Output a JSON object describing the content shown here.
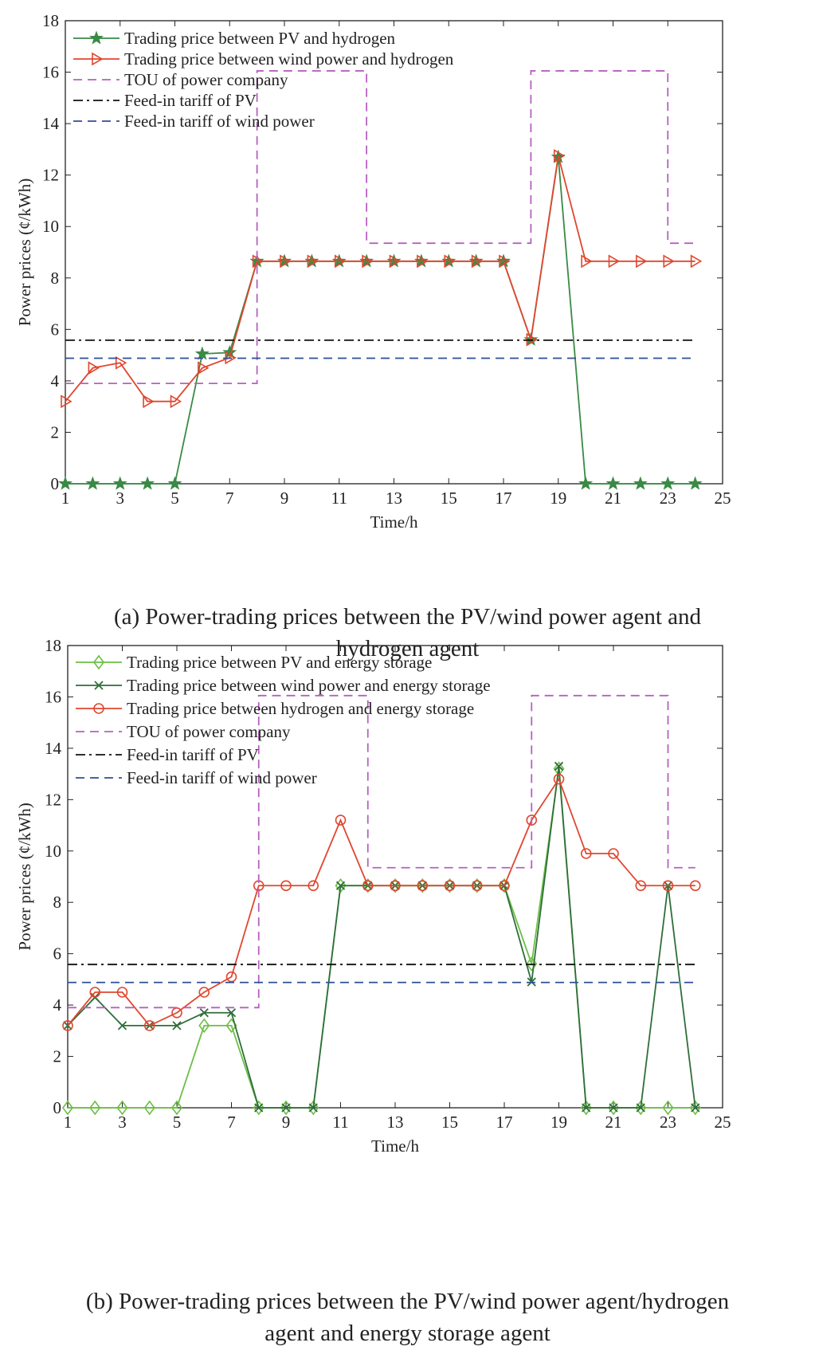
{
  "captions": {
    "a_line1": "(a) Power-trading prices between the PV/wind power agent and",
    "a_line2": "hydrogen agent",
    "b_line1": "(b) Power-trading prices between the PV/wind power agent/hydrogen",
    "b_line2": "agent and energy storage agent"
  },
  "chart_data": [
    {
      "type": "line",
      "xlabel": "Time/h",
      "ylabel": "Power prices (¢/kWh)",
      "xlim": [
        1,
        25
      ],
      "ylim": [
        0,
        18
      ],
      "xticks": [
        1,
        3,
        5,
        7,
        9,
        11,
        13,
        15,
        17,
        19,
        21,
        23,
        25
      ],
      "yticks": [
        0,
        2,
        4,
        6,
        8,
        10,
        12,
        14,
        16,
        18
      ],
      "grid": false,
      "legend_position": "top-left",
      "x": [
        1,
        2,
        3,
        4,
        5,
        6,
        7,
        8,
        9,
        10,
        11,
        12,
        13,
        14,
        15,
        16,
        17,
        18,
        19,
        20,
        21,
        22,
        23,
        24
      ],
      "series": [
        {
          "name": "Trading price between PV and hydrogen",
          "color": "#3a8a45",
          "marker": "star",
          "style": "solid",
          "values": [
            0,
            0,
            0,
            0,
            0,
            5.05,
            5.1,
            8.65,
            8.65,
            8.65,
            8.65,
            8.65,
            8.65,
            8.65,
            8.65,
            8.65,
            8.65,
            5.6,
            12.7,
            0,
            0,
            0,
            0,
            0
          ]
        },
        {
          "name": "Trading price between wind power and hydrogen",
          "color": "#e0472f",
          "marker": "triangle-right",
          "style": "solid",
          "values": [
            3.2,
            4.5,
            4.7,
            3.2,
            3.2,
            4.5,
            4.9,
            8.65,
            8.65,
            8.65,
            8.65,
            8.65,
            8.65,
            8.65,
            8.65,
            8.65,
            8.65,
            5.6,
            12.75,
            8.65,
            8.65,
            8.65,
            8.65,
            8.65
          ]
        },
        {
          "name": "TOU of power company",
          "color": "#b660c0",
          "style": "dashed",
          "step": true,
          "steps": [
            [
              1,
              3.9
            ],
            [
              8,
              16.05
            ],
            [
              12,
              9.35
            ],
            [
              18,
              16.05
            ],
            [
              23,
              9.35
            ],
            [
              24,
              9.35
            ]
          ]
        },
        {
          "name": "Feed-in tariff of PV",
          "color": "#111111",
          "style": "dashdot",
          "constant": 5.58,
          "range": [
            1,
            24
          ]
        },
        {
          "name": "Feed-in tariff of wind power",
          "color": "#2e4f9a",
          "style": "dashed",
          "constant": 4.88,
          "range": [
            1,
            24
          ]
        }
      ]
    },
    {
      "type": "line",
      "xlabel": "Time/h",
      "ylabel": "Power prices (¢/kWh)",
      "xlim": [
        1,
        25
      ],
      "ylim": [
        0,
        18
      ],
      "xticks": [
        1,
        3,
        5,
        7,
        9,
        11,
        13,
        15,
        17,
        19,
        21,
        23,
        25
      ],
      "yticks": [
        0,
        2,
        4,
        6,
        8,
        10,
        12,
        14,
        16,
        18
      ],
      "grid": false,
      "legend_position": "top-left",
      "x": [
        1,
        2,
        3,
        4,
        5,
        6,
        7,
        8,
        9,
        10,
        11,
        12,
        13,
        14,
        15,
        16,
        17,
        18,
        19,
        20,
        21,
        22,
        23,
        24
      ],
      "series": [
        {
          "name": "Trading price between PV and energy storage",
          "color": "#6cbf45",
          "marker": "diamond",
          "style": "solid",
          "values": [
            0,
            0,
            0,
            0,
            0,
            3.2,
            3.2,
            0,
            0,
            0,
            8.65,
            8.65,
            8.65,
            8.65,
            8.65,
            8.65,
            8.65,
            5.6,
            13.2,
            0,
            0,
            0,
            0,
            0
          ]
        },
        {
          "name": "Trading price between wind power and energy storage",
          "color": "#2f6e3a",
          "marker": "x",
          "style": "solid",
          "values": [
            3.2,
            4.3,
            3.2,
            3.2,
            3.2,
            3.7,
            3.7,
            0,
            0,
            0,
            8.65,
            8.65,
            8.65,
            8.65,
            8.65,
            8.65,
            8.65,
            4.9,
            13.3,
            0,
            0,
            0,
            8.65,
            0
          ]
        },
        {
          "name": "Trading price between hydrogen and energy storage",
          "color": "#e0472f",
          "marker": "circle",
          "style": "solid",
          "values": [
            3.2,
            4.5,
            4.5,
            3.2,
            3.7,
            4.5,
            5.1,
            8.65,
            8.65,
            8.65,
            11.2,
            8.65,
            8.65,
            8.65,
            8.65,
            8.65,
            8.65,
            11.2,
            12.8,
            9.9,
            9.9,
            8.65,
            8.65,
            8.65
          ]
        },
        {
          "name": "TOU of power company",
          "color": "#b660c0",
          "style": "dashed",
          "step": true,
          "steps": [
            [
              1,
              3.9
            ],
            [
              8,
              16.05
            ],
            [
              12,
              9.35
            ],
            [
              18,
              16.05
            ],
            [
              23,
              9.35
            ],
            [
              24,
              9.35
            ]
          ]
        },
        {
          "name": "Feed-in tariff of PV",
          "color": "#111111",
          "style": "dashdot",
          "constant": 5.58,
          "range": [
            1,
            24
          ]
        },
        {
          "name": "Feed-in tariff of wind power",
          "color": "#2e4f9a",
          "style": "dashed",
          "constant": 4.88,
          "range": [
            1,
            24
          ]
        }
      ]
    }
  ]
}
